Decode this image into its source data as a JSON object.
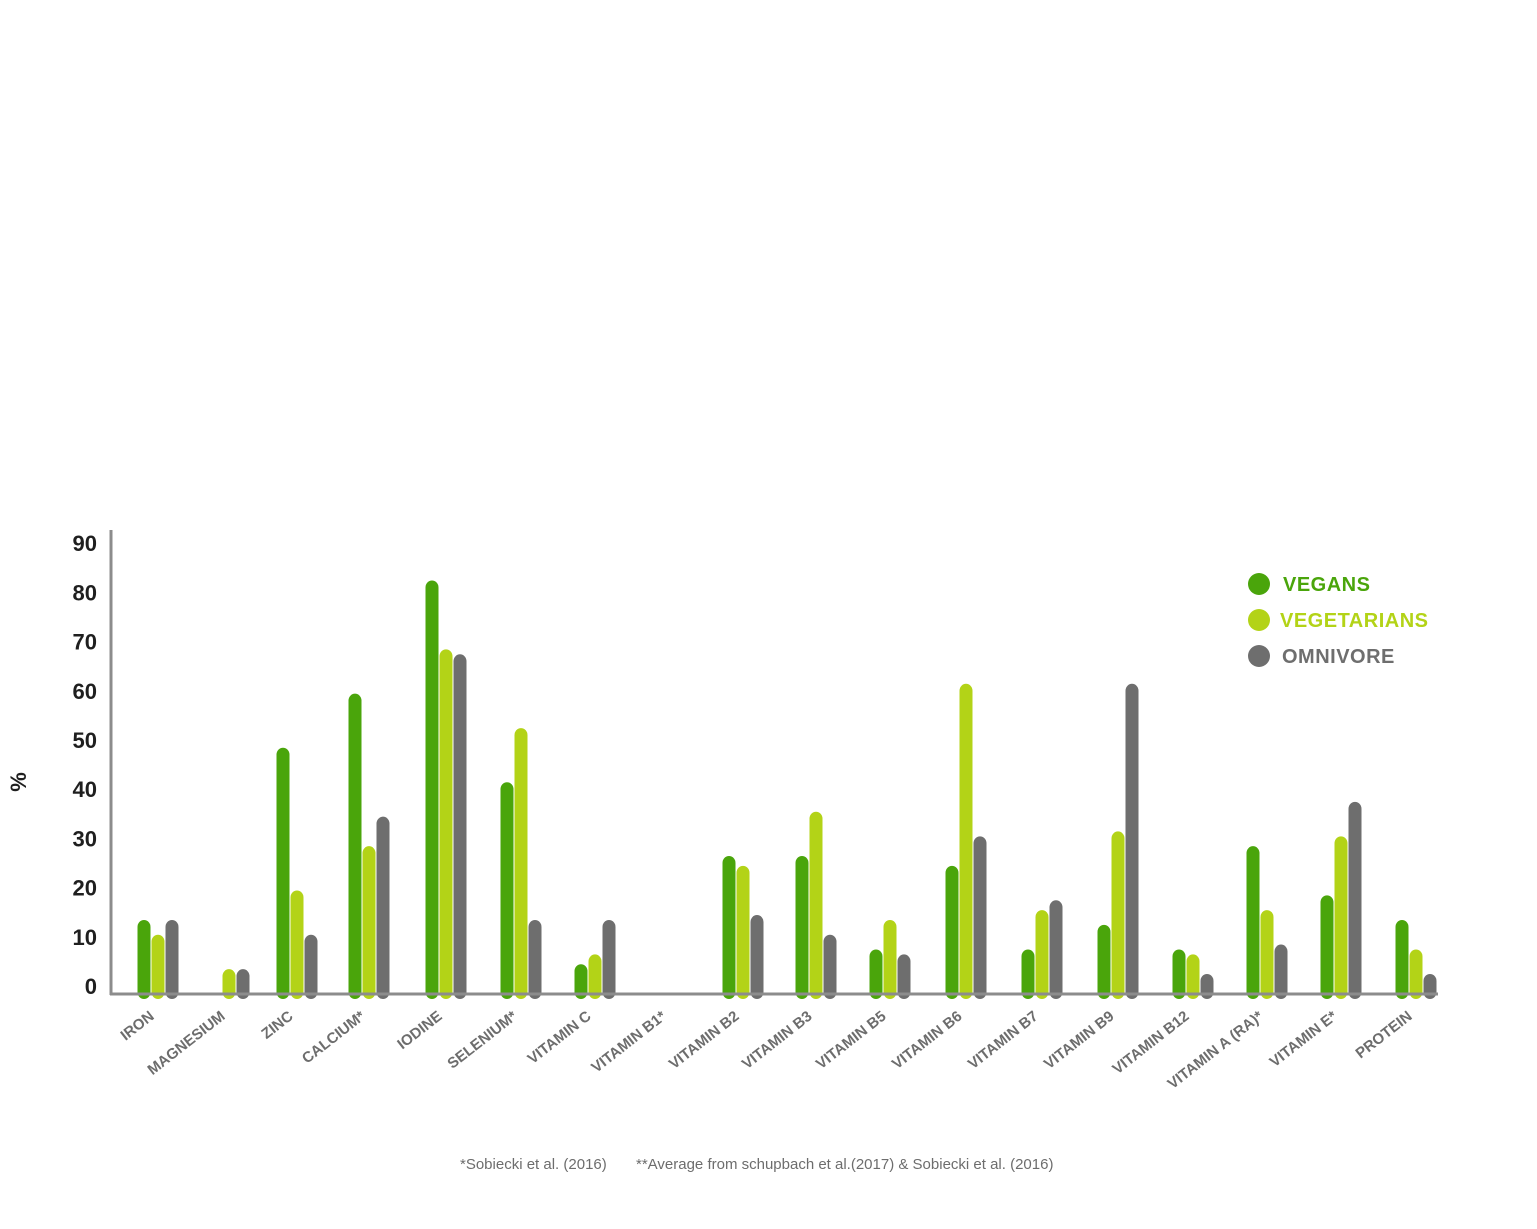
{
  "chart_data": {
    "type": "bar",
    "ylabel": "%",
    "ylim": [
      0,
      90
    ],
    "yticks": [
      "0",
      "10",
      "20",
      "30",
      "40",
      "50",
      "60",
      "70",
      "80",
      "90"
    ],
    "grid": false,
    "legend_position": "top-right",
    "categories": [
      "IRON",
      "MAGNESIUM",
      "ZINC",
      "CALCIUM*",
      "IODINE",
      "SELENIUM*",
      "VITAMIN C",
      "VITAMIN B1*",
      "VITAMIN B2",
      "VITAMIN B3",
      "VITAMIN B5",
      "VITAMIN B6",
      "VITAMIN B7",
      "VITAMIN B9",
      "VITAMIN B12",
      "VITAMIN A (RA)*",
      "VITAMIN E*",
      "PROTEIN"
    ],
    "series": [
      {
        "name": "VEGANS",
        "color": "#4aa50b",
        "values": [
          12,
          null,
          47,
          58,
          81,
          40,
          3,
          null,
          25,
          25,
          6,
          23,
          6,
          11,
          6,
          27,
          17,
          12
        ]
      },
      {
        "name": "VEGETARIANS",
        "color": "#b3d317",
        "values": [
          9,
          2,
          18,
          27,
          67,
          51,
          5,
          null,
          23,
          34,
          12,
          60,
          14,
          30,
          5,
          14,
          29,
          6
        ]
      },
      {
        "name": "OMNIVORE",
        "color": "#6e6e6e",
        "values": [
          12,
          2,
          9,
          33,
          66,
          12,
          12,
          null,
          13,
          9,
          5,
          29,
          16,
          60,
          0,
          7,
          36,
          1
        ]
      }
    ]
  },
  "footnotes": {
    "note1": "*Sobiecki et al. (2016)",
    "note2": "**Average from schupbach et al.(2017) & Sobiecki et al. (2016)"
  }
}
